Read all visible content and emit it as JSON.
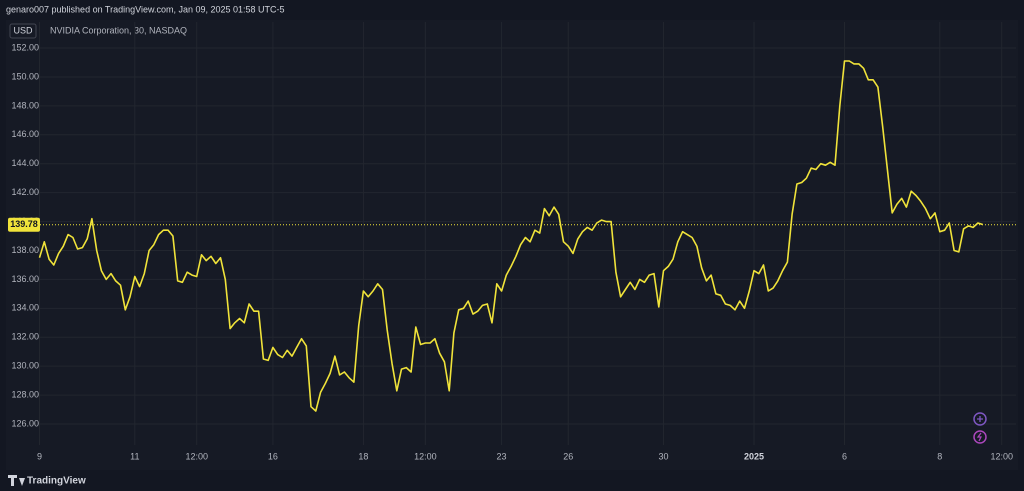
{
  "header": {
    "publisher": "genaro007 published on TradingView.com, Jan 09, 2025 01:58 UTC-5",
    "currency": "USD",
    "symbol": "NVIDIA Corporation, 30, NASDAQ",
    "footer": "TradingView"
  },
  "chart_data": {
    "type": "line",
    "color": "#f0e33a",
    "grid": true,
    "values": [
      137.5,
      138.6,
      137.4,
      137.0,
      137.8,
      138.3,
      139.1,
      138.9,
      138.1,
      138.2,
      138.8,
      140.2,
      138.0,
      136.6,
      136.0,
      136.4,
      135.9,
      135.6,
      133.9,
      134.8,
      136.2,
      135.5,
      136.4,
      138.0,
      138.4,
      139.1,
      139.4,
      139.4,
      139.0,
      135.9,
      135.8,
      136.5,
      136.3,
      136.2,
      137.7,
      137.3,
      137.6,
      137.1,
      137.5,
      136.0,
      132.6,
      133.0,
      133.3,
      133.0,
      134.3,
      133.8,
      133.8,
      130.5,
      130.4,
      131.3,
      130.8,
      130.6,
      131.1,
      130.7,
      131.3,
      131.9,
      131.4,
      127.2,
      126.9,
      128.2,
      128.8,
      129.5,
      130.7,
      129.4,
      129.6,
      129.2,
      128.9,
      132.8,
      135.2,
      134.8,
      135.2,
      135.7,
      135.3,
      132.5,
      130.2,
      128.3,
      129.8,
      129.9,
      129.6,
      132.7,
      131.5,
      131.6,
      131.6,
      131.9,
      130.9,
      130.3,
      128.3,
      132.3,
      133.9,
      134.0,
      134.5,
      133.6,
      133.8,
      134.2,
      134.3,
      133.0,
      135.7,
      135.2,
      136.3,
      136.9,
      137.6,
      138.4,
      138.9,
      138.6,
      139.4,
      139.2,
      140.9,
      140.4,
      141.0,
      140.5,
      138.6,
      138.3,
      137.8,
      138.8,
      139.3,
      139.6,
      139.4,
      139.9,
      140.1,
      140.0,
      140.0,
      136.5,
      134.8,
      135.3,
      135.8,
      135.3,
      136.0,
      135.8,
      136.3,
      136.4,
      134.1,
      136.6,
      136.9,
      137.4,
      138.6,
      139.3,
      139.1,
      138.9,
      138.3,
      136.8,
      135.9,
      136.3,
      135.0,
      134.9,
      134.3,
      134.2,
      133.9,
      134.5,
      134.0,
      135.2,
      136.6,
      136.4,
      137.0,
      135.2,
      135.4,
      135.9,
      136.6,
      137.2,
      140.5,
      142.6,
      142.7,
      143.0,
      143.7,
      143.6,
      144.0,
      143.9,
      144.1,
      143.9,
      148.0,
      151.1,
      151.1,
      150.9,
      150.9,
      150.6,
      149.8,
      149.8,
      149.3,
      146.6,
      143.6,
      140.6,
      141.2,
      141.6,
      141.0,
      142.1,
      141.8,
      141.4,
      140.9,
      140.2,
      140.6,
      139.3,
      139.4,
      139.9,
      138.0,
      137.9,
      139.5,
      139.7,
      139.6,
      139.9,
      139.8
    ],
    "xlim": [
      -2,
      205
    ],
    "xticks": [
      {
        "value": 0,
        "label": "9"
      },
      {
        "value": 20,
        "label": "11"
      },
      {
        "value": 33,
        "label": "12:00"
      },
      {
        "value": 49,
        "label": "16"
      },
      {
        "value": 68,
        "label": "18"
      },
      {
        "value": 81,
        "label": "12:00"
      },
      {
        "value": 97,
        "label": "23"
      },
      {
        "value": 111,
        "label": "26"
      },
      {
        "value": 131,
        "label": "30"
      },
      {
        "value": 150,
        "label": "2025"
      },
      {
        "value": 169,
        "label": "6"
      },
      {
        "value": 189,
        "label": "8"
      },
      {
        "value": 202,
        "label": "12:00"
      }
    ],
    "ylim": [
      124.55,
      153.8
    ],
    "yticks": [
      {
        "value": 126,
        "label": "126.00"
      },
      {
        "value": 128,
        "label": "128.00"
      },
      {
        "value": 130,
        "label": "130.00"
      },
      {
        "value": 132,
        "label": "132.00"
      },
      {
        "value": 134,
        "label": "134.00"
      },
      {
        "value": 136,
        "label": "136.00"
      },
      {
        "value": 138,
        "label": "138.00"
      },
      {
        "value": 140,
        "label": "140.00"
      },
      {
        "value": 142,
        "label": "142.00"
      },
      {
        "value": 144,
        "label": "144.00"
      },
      {
        "value": 146,
        "label": "146.00"
      },
      {
        "value": 148,
        "label": "148.00"
      },
      {
        "value": 150,
        "label": "150.00"
      },
      {
        "value": 152,
        "label": "152.00"
      }
    ],
    "last_price": 139.78
  }
}
